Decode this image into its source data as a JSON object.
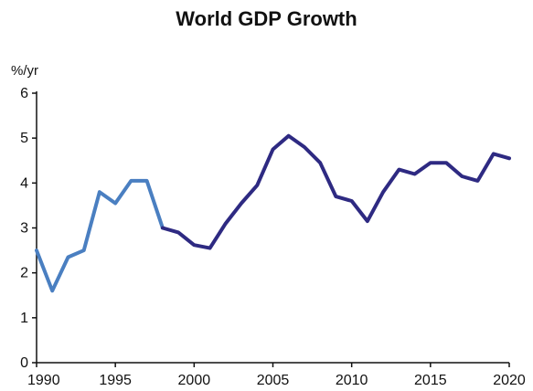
{
  "chart_data": {
    "type": "line",
    "title": "World GDP Growth",
    "ylabel": "%/yr",
    "xlabel": "",
    "xlim": [
      1990,
      2020
    ],
    "ylim": [
      0,
      6
    ],
    "grid": false,
    "x_ticks": [
      1990,
      1995,
      2000,
      2005,
      2010,
      2015,
      2020
    ],
    "y_ticks": [
      0,
      1,
      2,
      3,
      4,
      5,
      6
    ],
    "colors": {
      "early": "#4a7fc1",
      "late": "#2e2a82",
      "axis": "#111111"
    },
    "series": [
      {
        "x": [
          1990,
          1991,
          1992,
          1993,
          1994,
          1995,
          1996,
          1997,
          1998,
          1999,
          2000,
          2001,
          2002,
          2003,
          2004,
          2005,
          2006,
          2007,
          2008,
          2009,
          2010,
          2011,
          2012,
          2013,
          2014,
          2015,
          2016,
          2017,
          2018,
          2019,
          2020
        ],
        "values": [
          2.5,
          1.6,
          2.35,
          2.5,
          3.8,
          3.55,
          4.05,
          4.05,
          3.0,
          2.9,
          2.62,
          2.55,
          3.1,
          3.55,
          3.95,
          4.75,
          5.05,
          4.8,
          4.45,
          3.7,
          3.6,
          3.15,
          3.8,
          4.3,
          4.2,
          4.45,
          4.45,
          4.15,
          4.05,
          4.65,
          4.55
        ]
      }
    ],
    "color_change_year": 1998
  }
}
